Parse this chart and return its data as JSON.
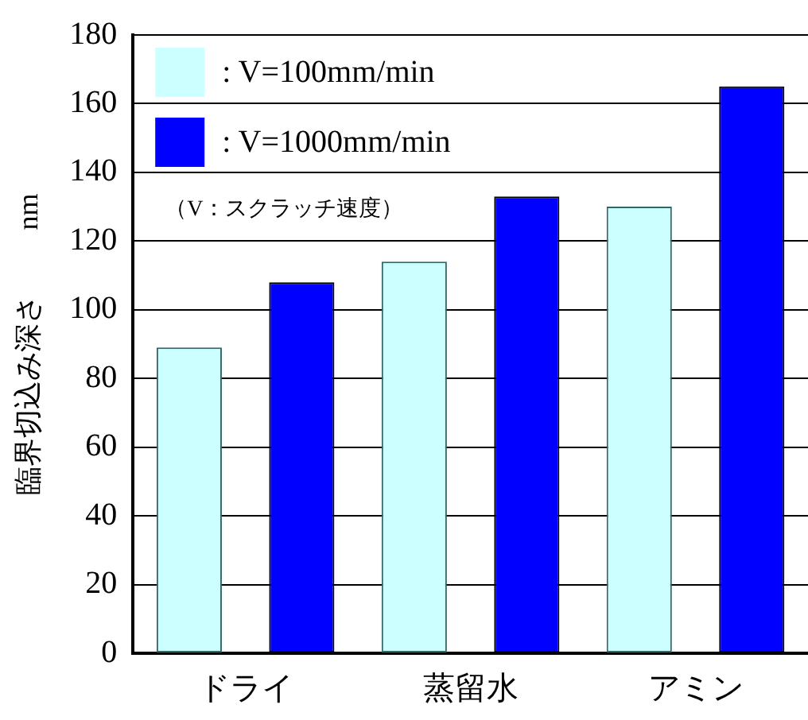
{
  "chart_data": {
    "type": "bar",
    "ylabel": "臨界切込み深さ　　 nm",
    "categories": [
      "ドライ",
      "蒸留水",
      "アミン"
    ],
    "series": [
      {
        "name": ": V=100mm/min",
        "color": "#ccffff",
        "values": [
          89,
          114,
          130
        ]
      },
      {
        "name": ": V=1000mm/min",
        "color": "#0000ff",
        "values": [
          108,
          133,
          165
        ]
      }
    ],
    "ylim": [
      0,
      180
    ],
    "yticks": [
      0,
      20,
      40,
      60,
      80,
      100,
      120,
      140,
      160,
      180
    ],
    "grid": "y",
    "legend": "top left",
    "annotations": [
      "（V：スクラッチ速度）"
    ]
  }
}
